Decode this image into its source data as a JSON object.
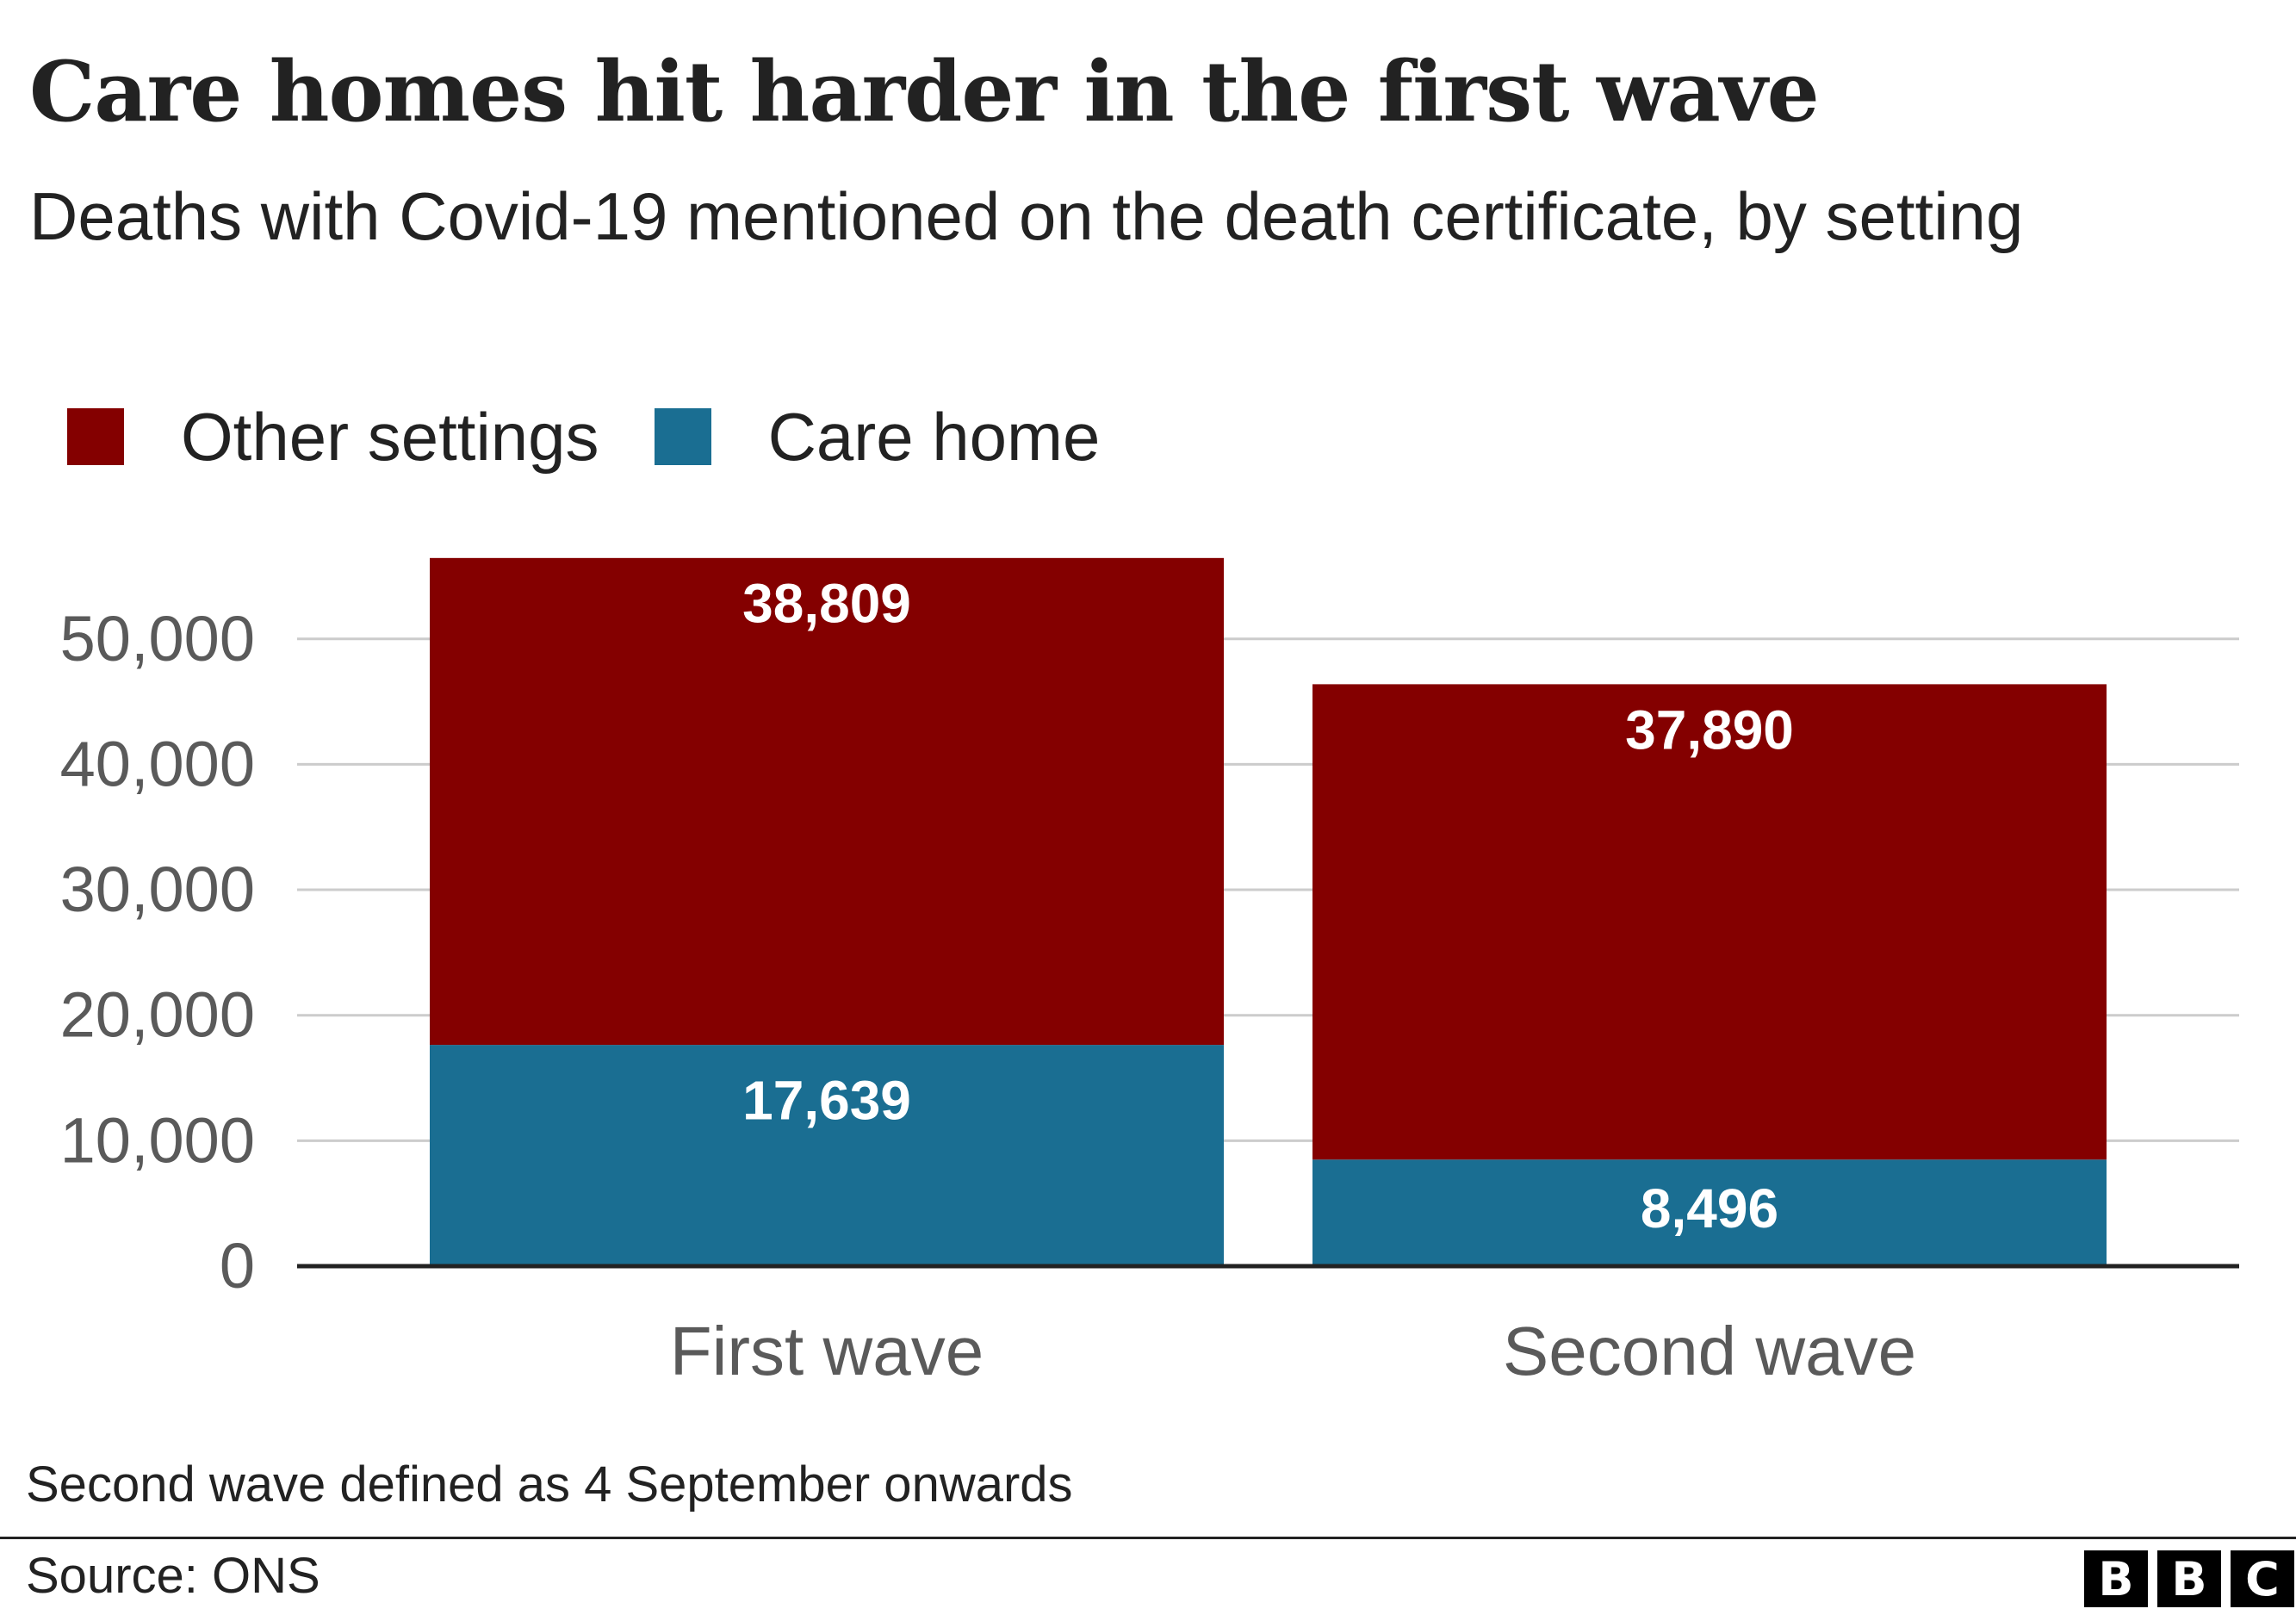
{
  "chart_data": {
    "type": "bar",
    "stacked": true,
    "title": "Care homes hit harder in the first wave",
    "subtitle": "Deaths with Covid-19 mentioned on the death certificate, by setting",
    "categories": [
      "First wave",
      "Second wave"
    ],
    "series": [
      {
        "name": "Care home",
        "color": "#1a6e92",
        "values": [
          17639,
          8496
        ],
        "labels": [
          "17,639",
          "8,496"
        ]
      },
      {
        "name": "Other settings",
        "color": "#840000",
        "values": [
          38809,
          37890
        ],
        "labels": [
          "38,809",
          "37,890"
        ]
      }
    ],
    "legend_order": [
      "Other settings",
      "Care home"
    ],
    "yticks": [
      0,
      10000,
      20000,
      30000,
      40000,
      50000
    ],
    "ytick_labels": [
      "0",
      "10,000",
      "20,000",
      "30,000",
      "40,000",
      "50,000"
    ],
    "ylim": [
      0,
      56448
    ],
    "xlabel": "",
    "ylabel": "",
    "grid": true,
    "legend_position": "top-left"
  },
  "note": "Second wave defined as 4 September onwards",
  "source": "Source: ONS",
  "logo": {
    "letters": [
      "B",
      "B",
      "C"
    ]
  },
  "colors": {
    "text": "#222222",
    "axis_text": "#5a5a5a",
    "grid": "#cccccc",
    "baseline": "#222222"
  }
}
